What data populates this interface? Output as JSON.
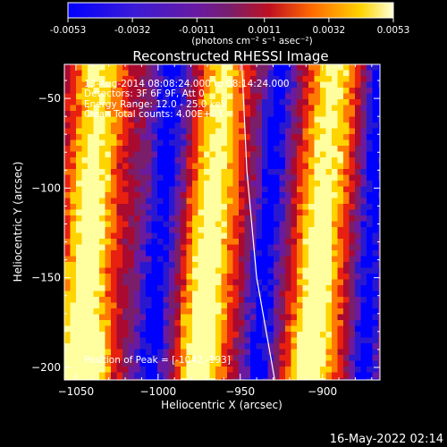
{
  "colorbar": {
    "ticks": [
      "-0.0053",
      "-0.0032",
      "-0.0011",
      "0.0011",
      "0.0032",
      "0.0053"
    ],
    "unit_label": "(photons cm⁻² s⁻¹ asec⁻²)",
    "min": -0.0053,
    "max": 0.0053
  },
  "chart_data": {
    "type": "heatmap",
    "title": "Reconstructed RHESSI Image",
    "xlabel": "Heliocentric X (arcsec)",
    "ylabel": "Heliocentric Y (arcsec)",
    "xlim": [
      -1057,
      -865
    ],
    "ylim": [
      -207,
      -31
    ],
    "x_ticks": [
      -1050,
      -1000,
      -950,
      -900
    ],
    "y_ticks": [
      -50,
      -100,
      -150,
      -200
    ],
    "x_tick_labels": [
      "−1050",
      "−1000",
      "−950",
      "−900"
    ],
    "y_tick_labels": [
      "−50",
      "−100",
      "−150",
      "−200"
    ],
    "annotations": [
      "13-Aug-2014 08:08:24.000 to 08:14:24.000",
      "Detectors: 3F 6F 9F, Att 0",
      "Energy Range: 12.0 - 25.0 keV",
      "Clean     Total counts: 4.00E+03"
    ],
    "peak_label": "Position of Peak = [-1042,-193]",
    "peak": [
      -1042,
      -193
    ],
    "bright_bands": [
      {
        "x_top": -1035,
        "x_bottom": -1047,
        "width": 22
      },
      {
        "x_top": -960,
        "x_bottom": -975,
        "width": 22
      },
      {
        "x_top": -893,
        "x_bottom": -908,
        "width": 22
      }
    ],
    "dark_bands": [
      {
        "x_top": -990,
        "x_bottom": -1005,
        "width": 18
      },
      {
        "x_top": -925,
        "x_bottom": -940,
        "width": 16
      },
      {
        "x_top": -865,
        "x_bottom": -875,
        "width": 14
      }
    ],
    "limb_curve": [
      [
        -949,
        -31
      ],
      [
        -946,
        -90
      ],
      [
        -940,
        -150
      ],
      [
        -929,
        -207
      ]
    ],
    "colors": [
      "#0000ff",
      "#2a18d0",
      "#6a1aa0",
      "#7a1e6a",
      "#aa0a30",
      "#e82010",
      "#ff7a00",
      "#ffd400",
      "#ffffa0"
    ]
  },
  "footer": {
    "date": "16-May-2022 02:14"
  }
}
